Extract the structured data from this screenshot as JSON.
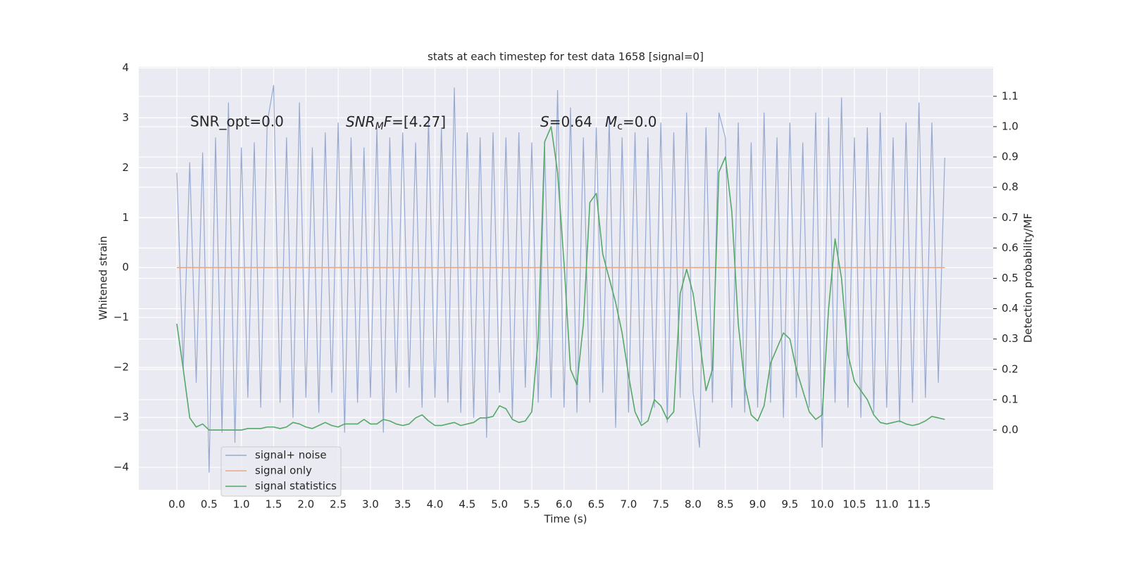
{
  "chart_data": {
    "type": "line",
    "title": "stats at each timestep for test data 1658 [signal=0]",
    "xlabel": "Time (s)",
    "ylabel": "Whitened strain",
    "y2label": "Detection probability/MF",
    "annotations": [
      "SNR_opt=0.0",
      [
        "SNR",
        "M",
        "F",
        "=[4.27]"
      ],
      [
        "S",
        "=0.64"
      ],
      [
        "M",
        "c",
        "=0.0"
      ]
    ],
    "x": [
      0,
      0.1,
      0.2,
      0.3,
      0.4,
      0.5,
      0.6,
      0.7,
      0.8,
      0.9,
      1,
      1.1,
      1.2,
      1.3,
      1.4,
      1.5,
      1.6,
      1.7,
      1.8,
      1.9,
      2,
      2.1,
      2.2,
      2.3,
      2.4,
      2.5,
      2.6,
      2.7,
      2.8,
      2.9,
      3,
      3.1,
      3.2,
      3.3,
      3.4,
      3.5,
      3.6,
      3.7,
      3.8,
      3.9,
      4,
      4.1,
      4.2,
      4.3,
      4.4,
      4.5,
      4.6,
      4.7,
      4.8,
      4.9,
      5,
      5.1,
      5.2,
      5.3,
      5.4,
      5.5,
      5.6,
      5.7,
      5.8,
      5.9,
      6,
      6.1,
      6.2,
      6.3,
      6.4,
      6.5,
      6.6,
      6.7,
      6.8,
      6.9,
      7,
      7.1,
      7.2,
      7.3,
      7.4,
      7.5,
      7.6,
      7.7,
      7.8,
      7.9,
      8,
      8.1,
      8.2,
      8.3,
      8.4,
      8.5,
      8.6,
      8.7,
      8.8,
      8.9,
      9,
      9.1,
      9.2,
      9.3,
      9.4,
      9.5,
      9.6,
      9.7,
      9.8,
      9.9,
      10,
      10.1,
      10.2,
      10.3,
      10.4,
      10.5,
      10.6,
      10.7,
      10.8,
      10.9,
      11,
      11.1,
      11.2,
      11.3,
      11.4,
      11.5,
      11.6,
      11.7,
      11.8,
      11.9
    ],
    "series": [
      {
        "name": "signal+ noise",
        "color": "#98a9d0",
        "values": [
          1.9,
          -2.0,
          2.1,
          -2.3,
          2.3,
          -4.1,
          2.6,
          -3.3,
          3.3,
          -3.5,
          2.4,
          -2.6,
          2.5,
          -2.8,
          2.9,
          3.65,
          -2.7,
          2.6,
          -3.0,
          3.3,
          -2.6,
          2.4,
          -2.9,
          2.7,
          -2.5,
          2.9,
          -3.3,
          2.6,
          -2.7,
          2.4,
          -2.6,
          2.8,
          -3.3,
          2.6,
          -2.5,
          2.7,
          -2.4,
          2.5,
          -2.8,
          3.0,
          -2.6,
          2.8,
          -2.7,
          3.6,
          -2.9,
          2.7,
          -3.0,
          2.6,
          -3.4,
          2.7,
          -2.5,
          2.6,
          -3.0,
          2.7,
          -2.4,
          2.5,
          -2.7,
          2.4,
          -2.6,
          3.55,
          -2.8,
          3.2,
          -2.9,
          2.6,
          -2.7,
          2.8,
          -2.5,
          3.0,
          -3.2,
          2.6,
          -2.9,
          2.7,
          -3.1,
          2.6,
          -2.8,
          2.9,
          -3.1,
          2.7,
          -2.6,
          3.1,
          -2.5,
          -3.6,
          2.8,
          -2.7,
          3.1,
          2.6,
          -2.8,
          2.9,
          -2.9,
          2.5,
          -2.8,
          3.1,
          -2.7,
          2.6,
          -3.0,
          2.9,
          -2.6,
          2.5,
          -2.8,
          3.1,
          -3.6,
          3.0,
          -2.7,
          3.4,
          -2.8,
          2.6,
          -3.0,
          2.8,
          -2.9,
          3.1,
          -2.8,
          2.6,
          -3.1,
          2.9,
          -2.7,
          3.3,
          -2.6,
          2.9,
          -2.3,
          2.2
        ]
      },
      {
        "name": "signal only",
        "color": "#e8a888",
        "values": [
          0,
          0,
          0,
          0,
          0,
          0,
          0,
          0,
          0,
          0,
          0,
          0,
          0,
          0,
          0,
          0,
          0,
          0,
          0,
          0,
          0,
          0,
          0,
          0,
          0,
          0,
          0,
          0,
          0,
          0,
          0,
          0,
          0,
          0,
          0,
          0,
          0,
          0,
          0,
          0,
          0,
          0,
          0,
          0,
          0,
          0,
          0,
          0,
          0,
          0,
          0,
          0,
          0,
          0,
          0,
          0,
          0,
          0,
          0,
          0,
          0,
          0,
          0,
          0,
          0,
          0,
          0,
          0,
          0,
          0,
          0,
          0,
          0,
          0,
          0,
          0,
          0,
          0,
          0,
          0,
          0,
          0,
          0,
          0,
          0,
          0,
          0,
          0,
          0,
          0,
          0,
          0,
          0,
          0,
          0,
          0,
          0,
          0,
          0,
          0,
          0,
          0,
          0,
          0,
          0,
          0,
          0,
          0,
          0,
          0,
          0,
          0,
          0,
          0,
          0,
          0,
          0,
          0,
          0,
          0
        ]
      },
      {
        "name": "signal statistics",
        "color": "#55a868",
        "axis": "y2",
        "values": [
          0.35,
          0.2,
          0.04,
          0.01,
          0.02,
          0.0,
          0.0,
          0.0,
          0.0,
          0.0,
          0.0,
          0.005,
          0.005,
          0.005,
          0.01,
          0.01,
          0.005,
          0.01,
          0.025,
          0.02,
          0.01,
          0.005,
          0.015,
          0.025,
          0.015,
          0.01,
          0.02,
          0.02,
          0.02,
          0.035,
          0.02,
          0.02,
          0.035,
          0.03,
          0.02,
          0.015,
          0.02,
          0.04,
          0.05,
          0.03,
          0.015,
          0.015,
          0.02,
          0.025,
          0.015,
          0.02,
          0.025,
          0.04,
          0.04,
          0.045,
          0.08,
          0.07,
          0.035,
          0.025,
          0.03,
          0.06,
          0.3,
          0.95,
          1.0,
          0.85,
          0.55,
          0.2,
          0.15,
          0.35,
          0.75,
          0.78,
          0.58,
          0.5,
          0.42,
          0.32,
          0.18,
          0.06,
          0.015,
          0.03,
          0.1,
          0.08,
          0.035,
          0.06,
          0.45,
          0.53,
          0.45,
          0.3,
          0.13,
          0.2,
          0.85,
          0.9,
          0.72,
          0.35,
          0.15,
          0.05,
          0.03,
          0.08,
          0.22,
          0.27,
          0.32,
          0.3,
          0.2,
          0.13,
          0.06,
          0.035,
          0.05,
          0.4,
          0.63,
          0.5,
          0.25,
          0.16,
          0.13,
          0.1,
          0.05,
          0.025,
          0.02,
          0.025,
          0.03,
          0.02,
          0.015,
          0.02,
          0.03,
          0.045,
          0.04,
          0.035
        ]
      }
    ],
    "xlim": [
      -0.59,
      12.65
    ],
    "ylim": [
      -4.45,
      4.02
    ],
    "y2lim": [
      -0.197,
      1.197
    ],
    "xticks": [
      {
        "value": 0,
        "label": "0.0"
      },
      0.5,
      {
        "value": 1,
        "label": "1.0"
      },
      1.5,
      {
        "value": 2,
        "label": "2.0"
      },
      2.5,
      {
        "value": 3,
        "label": "3.0"
      },
      3.5,
      {
        "value": 4,
        "label": "4.0"
      },
      4.5,
      {
        "value": 5,
        "label": "5.0"
      },
      5.5,
      {
        "value": 6,
        "label": "6.0"
      },
      6.5,
      {
        "value": 7,
        "label": "7.0"
      },
      7.5,
      {
        "value": 8,
        "label": "8.0"
      },
      8.5,
      {
        "value": 9,
        "label": "9.0"
      },
      9.5,
      {
        "value": 10,
        "label": "10.0"
      },
      10.5,
      {
        "value": 11,
        "label": "11.0"
      },
      11.5
    ],
    "yticks": [
      {
        "value": -4,
        "label": "−4"
      },
      {
        "value": -3,
        "label": "−3"
      },
      {
        "value": -2,
        "label": "−2"
      },
      {
        "value": -1,
        "label": "−1"
      },
      0,
      1,
      2,
      3,
      4
    ],
    "y2ticks": [
      {
        "value": 0,
        "label": "0.0"
      },
      0.1,
      0.2,
      0.3,
      0.4,
      0.5,
      0.6,
      0.7,
      0.8,
      0.9,
      {
        "value": 1,
        "label": "1.0"
      },
      1.1
    ],
    "grid": true,
    "legend": "lower left"
  }
}
